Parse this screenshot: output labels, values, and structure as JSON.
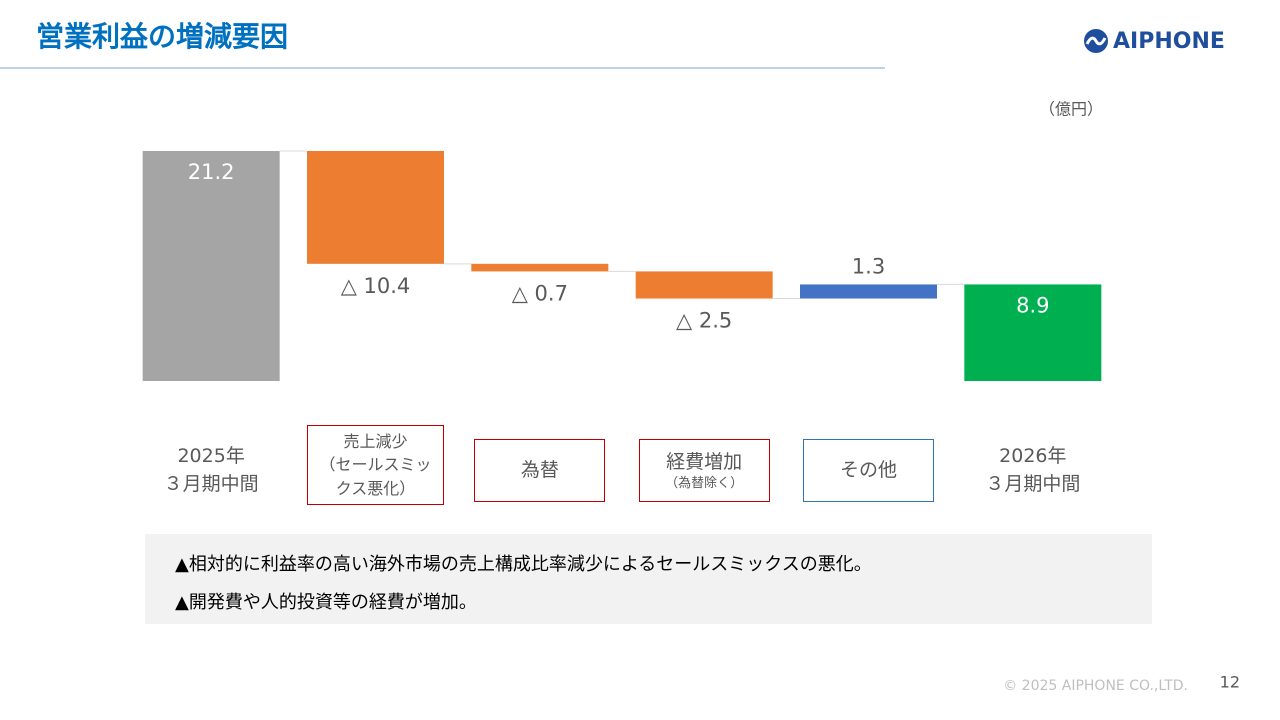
{
  "slide": {
    "title": "営業利益の増減要因",
    "logo": "AIPHONE",
    "notes": [
      "▲相対的に利益率の高い海外市場の売上構成比率減少によるセールスミックスの悪化。",
      "▲開発費や人的投資等の経費が増加。"
    ],
    "copyright": "© 2025 AIPHONE CO.,LTD.",
    "page": "12"
  },
  "chart_data": {
    "type": "waterfall",
    "unit": "（億円）",
    "categories": [
      "2025年\n３月期中間",
      "売上減少\n（セールスミックス悪化）",
      "為替",
      "経費増加",
      "その他",
      "2026年\n３月期中間"
    ],
    "category_sublabels": [
      null,
      null,
      null,
      "（為替除く）",
      null,
      null
    ],
    "values": [
      21.2,
      -10.4,
      -0.7,
      -2.5,
      1.3,
      8.9
    ],
    "value_labels": [
      "21.2",
      "△ 10.4",
      "△ 0.7",
      "△ 2.5",
      "1.3",
      "8.9"
    ],
    "is_total": [
      true,
      false,
      false,
      false,
      false,
      true
    ],
    "colors": [
      "#a5a5a5",
      "#ed7d31",
      "#ed7d31",
      "#ed7d31",
      "#4472c4",
      "#00b050"
    ],
    "ylim": [
      0,
      22
    ]
  }
}
